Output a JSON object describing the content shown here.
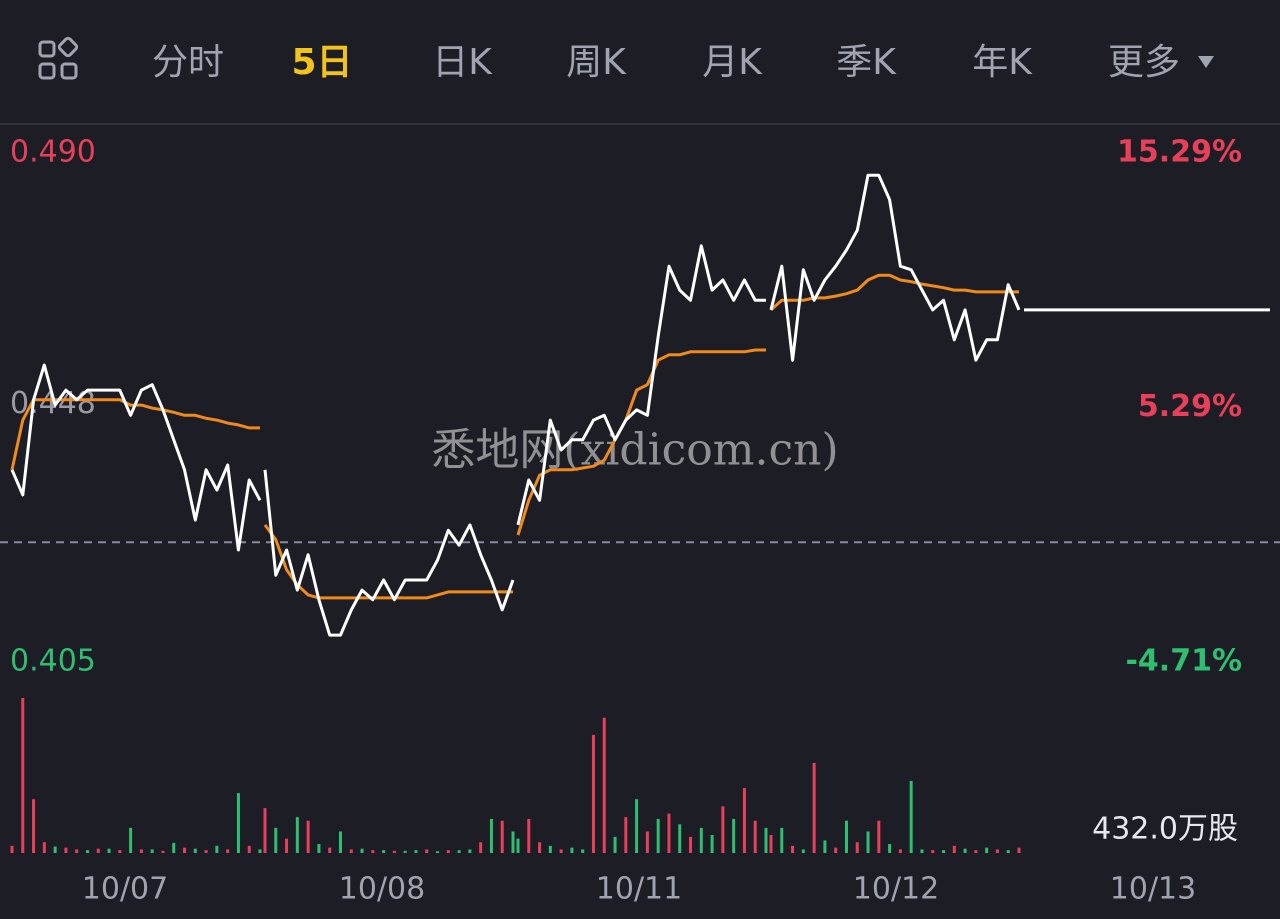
{
  "tabs": [
    "分时",
    "5日",
    "日K",
    "周K",
    "月K",
    "季K",
    "年K",
    "更多"
  ],
  "active_tab": 1,
  "watermark": "悉地网(xidicom.cn)",
  "chart_data": {
    "type": "line",
    "x_labels": [
      "10/07",
      "10/08",
      "10/11",
      "10/12",
      "10/13"
    ],
    "ylim": [
      0.405,
      0.49
    ],
    "yticks": [
      {
        "value": 0.49,
        "label": "0.490"
      },
      0.448,
      0.405
    ],
    "y2lim": [
      -4.71,
      15.29
    ],
    "y2ticks": [
      {
        "value": 15.29,
        "label": "15.29%"
      },
      {
        "value": 5.29,
        "label": "5.29%"
      },
      {
        "value": -4.71,
        "label": "-4.71%"
      }
    ],
    "prev_close": 0.425,
    "series": [
      {
        "color": "#ffffff",
        "values": [
          0.4371,
          0.4329,
          0.4488,
          0.4546,
          0.4479,
          0.4504,
          0.4488,
          0.4504,
          0.4504,
          0.4504,
          0.4504,
          0.4462,
          0.4504,
          0.4513,
          0.4471,
          0.4421,
          0.4371,
          0.4287,
          0.4371,
          0.4337,
          0.4379,
          0.4237,
          0.4354,
          0.432,
          null,
          0.4371,
          0.4195,
          0.4237,
          0.417,
          0.4229,
          0.4154,
          0.4095,
          0.4095,
          0.4137,
          0.417,
          0.4154,
          0.4187,
          0.4154,
          0.4187,
          0.4187,
          0.4187,
          0.422,
          0.427,
          0.4245,
          0.4279,
          0.4229,
          0.4187,
          0.4137,
          0.4187,
          null,
          0.4279,
          0.4354,
          0.432,
          0.4454,
          0.4404,
          0.4421,
          0.4421,
          0.4454,
          0.4462,
          0.4421,
          0.4454,
          0.4471,
          0.4462,
          0.4594,
          0.4711,
          0.4671,
          0.4654,
          0.4745,
          0.4671,
          0.4688,
          0.4654,
          0.4688,
          0.4654,
          0.4654,
          null,
          0.4638,
          0.4711,
          0.4554,
          0.4705,
          0.4654,
          0.4688,
          0.4711,
          0.4738,
          0.4771,
          0.4863,
          0.4863,
          0.4822,
          0.4711,
          0.4705,
          0.4671,
          0.4638,
          0.4654,
          0.4588,
          0.4638,
          0.4554,
          0.4588,
          0.4588,
          0.468,
          0.4638,
          null,
          0.4638,
          0.4638,
          0.4638,
          0.4638,
          0.4638,
          0.4638,
          0.4638,
          0.4638,
          0.4638,
          0.4638,
          0.4638,
          0.4638,
          0.4638,
          0.4638,
          0.4638,
          0.4638,
          0.4638,
          0.4638,
          0.4638,
          0.4638,
          0.4638,
          0.4638,
          0.4638,
          0.4638,
          0.4638
        ]
      },
      {
        "color": "#f08a1c",
        "values": [
          0.4371,
          0.4454,
          0.4488,
          0.4488,
          0.4488,
          0.4488,
          0.4488,
          0.4488,
          0.4488,
          0.4488,
          0.4488,
          0.4479,
          0.4479,
          0.4474,
          0.4471,
          0.4467,
          0.4462,
          0.4462,
          0.4457,
          0.4454,
          0.4449,
          0.4446,
          0.4441,
          0.4441,
          null,
          0.4279,
          0.4254,
          0.4204,
          0.4179,
          0.4162,
          0.4157,
          0.4157,
          0.4157,
          0.4157,
          0.4157,
          0.4157,
          0.4157,
          0.4157,
          0.4157,
          0.4157,
          0.4157,
          0.4162,
          0.4167,
          0.4167,
          0.4167,
          0.4167,
          0.4167,
          0.4167,
          0.4167,
          null,
          0.4262,
          0.432,
          0.4362,
          0.4371,
          0.4371,
          0.4371,
          0.4374,
          0.4377,
          0.4387,
          0.4421,
          0.4454,
          0.4504,
          0.4513,
          0.4554,
          0.4563,
          0.4563,
          0.4568,
          0.4568,
          0.4568,
          0.4568,
          0.4568,
          0.4568,
          0.4571,
          0.4571,
          null,
          0.4638,
          0.4654,
          0.4654,
          0.4654,
          0.4658,
          0.4658,
          0.4661,
          0.4665,
          0.4671,
          0.4688,
          0.4696,
          0.4696,
          0.4688,
          0.4685,
          0.4681,
          0.4678,
          0.4675,
          0.4671,
          0.4671,
          0.4668,
          0.4668,
          0.4668,
          0.4668,
          0.4668,
          null,
          null,
          null,
          null,
          null,
          null,
          null,
          null,
          null,
          null,
          null,
          null,
          null,
          null,
          null,
          null,
          null,
          null,
          null,
          null,
          null,
          null,
          null,
          null,
          null,
          null
        ]
      }
    ],
    "volume_label": "432.0万股",
    "volume_lim": [
      0,
      432
    ],
    "volume_up": {
      "color": "#e8405a",
      "values": [
        20,
        432,
        150,
        30,
        null,
        15,
        10,
        null,
        12,
        null,
        8,
        null,
        10,
        null,
        6,
        null,
        15,
        null,
        8,
        null,
        10,
        null,
        20,
        null,
        null,
        125,
        null,
        40,
        null,
        90,
        null,
        15,
        null,
        10,
        null,
        8,
        null,
        6,
        null,
        null,
        10,
        null,
        8,
        null,
        null,
        30,
        null,
        90,
        null,
        null,
        null,
        95,
        30,
        null,
        10,
        null,
        null,
        329,
        377,
        null,
        100,
        null,
        60,
        null,
        110,
        null,
        45,
        null,
        null,
        130,
        null,
        181,
        90,
        null,
        null,
        50,
        null,
        20,
        null,
        251,
        null,
        15,
        null,
        30,
        null,
        90,
        null,
        10,
        null,
        null,
        8,
        null,
        20,
        null,
        8,
        null,
        10,
        null,
        15,
        null
      ]
    },
    "volume_down": {
      "color": "#2fbf71",
      "values": [
        null,
        null,
        null,
        null,
        18,
        null,
        null,
        8,
        null,
        12,
        null,
        70,
        null,
        10,
        null,
        28,
        null,
        12,
        null,
        20,
        null,
        167,
        null,
        10,
        null,
        null,
        70,
        null,
        100,
        null,
        25,
        null,
        60,
        null,
        12,
        null,
        8,
        null,
        6,
        8,
        null,
        5,
        null,
        8,
        10,
        null,
        95,
        null,
        60,
        null,
        40,
        null,
        null,
        20,
        null,
        15,
        10,
        null,
        null,
        45,
        null,
        150,
        null,
        95,
        null,
        80,
        null,
        70,
        50,
        null,
        95,
        null,
        null,
        70,
        null,
        null,
        70,
        null,
        10,
        null,
        35,
        null,
        90,
        null,
        60,
        null,
        25,
        null,
        201,
        10,
        null,
        8,
        null,
        12,
        null,
        15,
        null,
        8,
        null,
        null
      ]
    }
  }
}
